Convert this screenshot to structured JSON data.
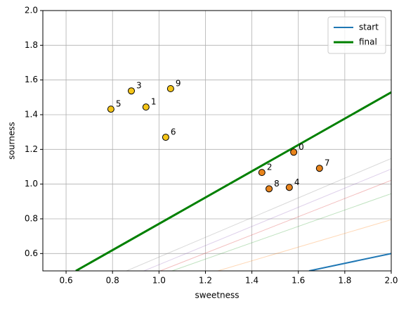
{
  "chart_data": {
    "type": "scatter",
    "xlabel": "sweetness",
    "ylabel": "sourness",
    "xlim": [
      0.5,
      2.0
    ],
    "ylim": [
      0.5,
      2.0
    ],
    "xticks": [
      0.6,
      0.8,
      {
        "value": 1,
        "label": "1.0"
      },
      1.2,
      1.4,
      1.6,
      1.8,
      {
        "value": 2,
        "label": "2.0"
      }
    ],
    "yticks": [
      0.6,
      0.8,
      {
        "value": 1,
        "label": "1.0"
      },
      1.2,
      1.4,
      1.6,
      1.8,
      {
        "value": 2,
        "label": "2.0"
      }
    ],
    "grid": true,
    "legend": "upper right",
    "points": {
      "x": [
        1.58,
        0.944,
        1.443,
        0.881,
        1.561,
        0.793,
        1.029,
        1.691,
        1.474,
        1.05
      ],
      "y": [
        1.184,
        1.444,
        1.067,
        1.537,
        0.981,
        1.432,
        1.27,
        1.091,
        0.973,
        1.55
      ],
      "labels": [
        "0",
        "1",
        "2",
        "3",
        "4",
        "5",
        "6",
        "7",
        "8",
        "9"
      ],
      "colors": [
        "#e8841c",
        "#f5c518",
        "#e8841c",
        "#f5c518",
        "#e8841c",
        "#f5c518",
        "#f5c518",
        "#e8841c",
        "#e8841c",
        "#f5c518"
      ]
    },
    "series": [
      {
        "name": "start",
        "color": "#1f77b4",
        "x": [
          1.646,
          2.0
        ],
        "values": [
          0.5,
          0.6
        ]
      },
      {
        "color": "#7f7f7f",
        "opacity": 0.3,
        "x": [
          0.86,
          2.0
        ],
        "values": [
          0.5,
          1.148
        ]
      },
      {
        "color": "#9467bd",
        "opacity": 0.3,
        "x": [
          0.935,
          2.0
        ],
        "values": [
          0.5,
          1.087
        ]
      },
      {
        "color": "#d62728",
        "opacity": 0.3,
        "x": [
          1.005,
          2.0
        ],
        "values": [
          0.5,
          1.022
        ]
      },
      {
        "color": "#2ca02c",
        "opacity": 0.3,
        "x": [
          1.056,
          2.0
        ],
        "values": [
          0.5,
          0.945
        ]
      },
      {
        "color": "#ff7f0e",
        "opacity": 0.3,
        "x": [
          1.253,
          2.0
        ],
        "values": [
          0.5,
          0.795
        ]
      },
      {
        "name": "final",
        "color": "#008000",
        "x": [
          0.642,
          2.0
        ],
        "values": [
          0.5,
          1.529
        ],
        "width": 3
      }
    ]
  }
}
